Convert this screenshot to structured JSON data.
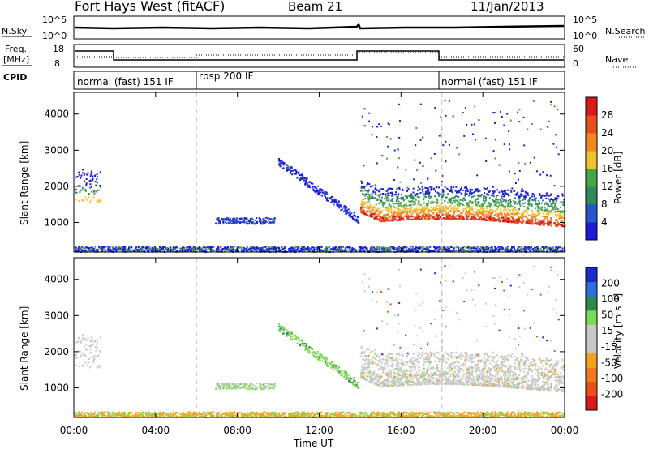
{
  "header": {
    "station": "Fort Hays West (fitACF)",
    "beam": "Beam 21",
    "date": "11/Jan/2013"
  },
  "noise_panel": {
    "left_label": "N.Sky",
    "right_label": "N.Search",
    "left_ticks": [
      "10^5",
      "10^0"
    ],
    "right_ticks": [
      "10^5",
      "10^0"
    ]
  },
  "freq_panel": {
    "left_label_1": "Freq.",
    "left_label_2": "[MHz]",
    "right_label": "Nave",
    "left_ticks": [
      "18",
      "8"
    ],
    "right_ticks": [
      "60",
      "0"
    ]
  },
  "cpid_panel": {
    "label": "CPID",
    "segments": [
      {
        "start_hour": 0,
        "name": "normal (fast) 151 IF"
      },
      {
        "start_hour": 6,
        "name": "rbsp 200 IF"
      },
      {
        "start_hour": 18,
        "name": "normal (fast) 151 IF"
      }
    ]
  },
  "colors": {
    "power_scale": [
      "#1c1cd8",
      "#2a55c8",
      "#2e8a5a",
      "#47a447",
      "#f2c12e",
      "#f08a1e",
      "#e8501a",
      "#d81a1a"
    ],
    "velocity_scale": [
      "#1c2cc8",
      "#2a6ee0",
      "#2e8a4a",
      "#7ed957",
      "#c8c8c8",
      "#c8c8c8",
      "#f2a21e",
      "#f07a1e",
      "#e8501a",
      "#d81a1a"
    ]
  },
  "chart_data": [
    {
      "type": "heatmap",
      "name_panel": "power",
      "ylabel": "Slant Range [km]",
      "xlim_hours": [
        0,
        24
      ],
      "ylim_km": [
        180,
        4600
      ],
      "yticks": [
        "1000",
        "2000",
        "3000",
        "4000"
      ],
      "colorbar_label": "Power [dB]",
      "colorbar_ticks": [
        "4",
        "8",
        "12",
        "16",
        "20",
        "24",
        "28"
      ],
      "regions": [
        {
          "t_start": 0.0,
          "t_end": 1.3,
          "r_low": 1550,
          "r_high": 2500,
          "level": "medium-low"
        },
        {
          "t_start": 6.9,
          "t_end": 9.8,
          "r_low": 980,
          "r_high": 1150,
          "level": "low"
        },
        {
          "t_start": 10.0,
          "t_end": 13.9,
          "r_low": 1100,
          "r_high": 2700,
          "level": "low"
        },
        {
          "t_start": 14.0,
          "t_end": 24.0,
          "r_low": 950,
          "r_high": 2200,
          "level": "high"
        },
        {
          "t_start": 0.0,
          "t_end": 24.0,
          "r_low": 200,
          "r_high": 350,
          "level": "low-sparse"
        }
      ]
    },
    {
      "type": "heatmap",
      "name_panel": "velocity",
      "ylabel": "Slant Range [km]",
      "xlabel": "Time UT",
      "xlim_hours": [
        0,
        24
      ],
      "ylim_km": [
        180,
        4600
      ],
      "xticks": [
        "00:00",
        "04:00",
        "08:00",
        "12:00",
        "16:00",
        "20:00",
        "00:00"
      ],
      "yticks": [
        "1000",
        "2000",
        "3000",
        "4000"
      ],
      "colorbar_label": "Velocity [m s⁻¹]",
      "colorbar_ticks": [
        "200",
        "100",
        "50",
        "15",
        "-15",
        "-50",
        "-100",
        "-200"
      ],
      "regions": [
        {
          "t_start": 0.0,
          "t_end": 1.3,
          "r_low": 1550,
          "r_high": 2500,
          "level": "near-zero"
        },
        {
          "t_start": 6.9,
          "t_end": 9.8,
          "r_low": 980,
          "r_high": 1150,
          "level": "near-zero / positive"
        },
        {
          "t_start": 10.0,
          "t_end": 13.9,
          "r_low": 1100,
          "r_high": 2700,
          "level": "positive 15-50"
        },
        {
          "t_start": 14.0,
          "t_end": 24.0,
          "r_low": 950,
          "r_high": 2200,
          "level": "near-zero"
        }
      ]
    }
  ]
}
